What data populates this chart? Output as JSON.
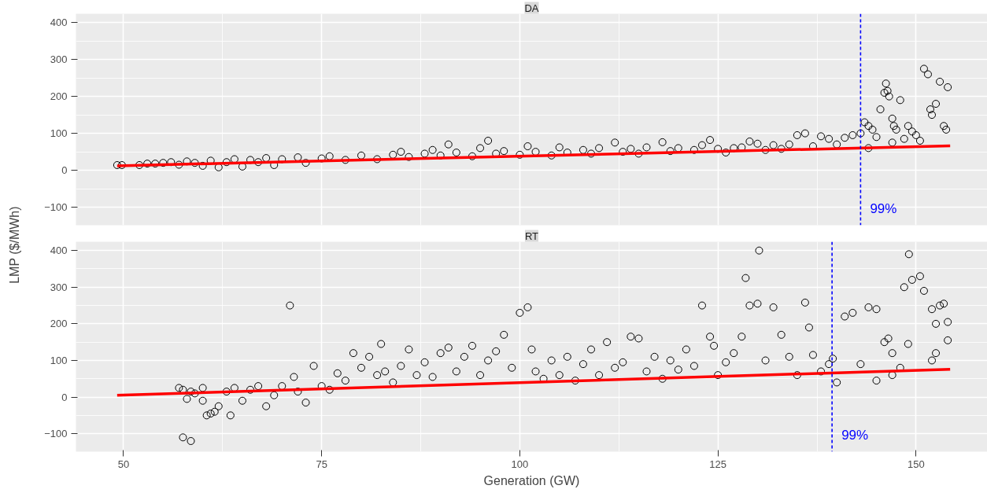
{
  "chart_data": [
    {
      "type": "scatter",
      "title": "DA",
      "ylabel": "LMP ($/MWh)",
      "xlim": [
        44,
        159
      ],
      "xticks": [
        50,
        75,
        100,
        125,
        150
      ],
      "ylim": [
        -149,
        424
      ],
      "yticks": [
        -100,
        0,
        100,
        200,
        300,
        400
      ],
      "grid": true,
      "tick_labels": "y",
      "series": [
        {
          "marker": "circle",
          "color": "#000000",
          "x": [
            49.2,
            49.8,
            52,
            53,
            54,
            55,
            56,
            57,
            58,
            59,
            60,
            61,
            62,
            63,
            64,
            65,
            66,
            67,
            68,
            69,
            70,
            72,
            73,
            75,
            76,
            78,
            80,
            82,
            84,
            85,
            86,
            88,
            89,
            90,
            91,
            92,
            94,
            95,
            96,
            97,
            98,
            100,
            101,
            102,
            104,
            105,
            106,
            108,
            109,
            110,
            112,
            113,
            114,
            115,
            116,
            118,
            119,
            120,
            122,
            123,
            124,
            125,
            126,
            127,
            128,
            129,
            130,
            131,
            132,
            133,
            134,
            135,
            136,
            137,
            138,
            139,
            140,
            141,
            142,
            143,
            143.5,
            144,
            144.5,
            145,
            145.5,
            146,
            146.2,
            146.4,
            146.6,
            147,
            147.2,
            147.5,
            148,
            148.5,
            149,
            149.5,
            150,
            150.5,
            151,
            151.5,
            152.5,
            153,
            153.5,
            153.8,
            154,
            152,
            151.8,
            144,
            147
          ],
          "values": [
            14,
            14,
            14,
            18,
            18,
            20,
            22,
            15,
            24,
            20,
            12,
            26,
            8,
            22,
            30,
            10,
            28,
            22,
            33,
            14,
            30,
            35,
            20,
            32,
            38,
            28,
            40,
            30,
            42,
            50,
            36,
            45,
            55,
            40,
            70,
            48,
            38,
            60,
            80,
            45,
            52,
            42,
            65,
            50,
            40,
            62,
            48,
            55,
            45,
            60,
            75,
            50,
            58,
            45,
            62,
            76,
            52,
            60,
            55,
            68,
            82,
            58,
            48,
            60,
            62,
            78,
            72,
            55,
            68,
            58,
            70,
            95,
            100,
            65,
            92,
            85,
            70,
            88,
            95,
            100,
            130,
            120,
            110,
            90,
            165,
            210,
            235,
            215,
            200,
            140,
            120,
            110,
            190,
            85,
            120,
            105,
            95,
            80,
            275,
            260,
            180,
            240,
            120,
            110,
            225,
            150,
            165,
            60,
            75
          ]
        },
        {
          "type": "line",
          "color": "#ff0000",
          "x": [
            49.2,
            154.3
          ],
          "values": [
            12,
            66
          ]
        }
      ],
      "ref_lines": [
        {
          "axis": "x",
          "value": 143,
          "color": "#0000ff",
          "line_style": "dashed"
        }
      ],
      "annotations": [
        {
          "text": "99%",
          "x": 143,
          "y": -105
        }
      ]
    },
    {
      "type": "scatter",
      "title": "RT",
      "xlabel": "Generation (GW)",
      "xlim": [
        44,
        159
      ],
      "xticks": [
        50,
        75,
        100,
        125,
        150
      ],
      "ylim": [
        -149,
        424
      ],
      "yticks": [
        -100,
        0,
        100,
        200,
        300,
        400
      ],
      "grid": true,
      "series": [
        {
          "marker": "circle",
          "color": "#000000",
          "x": [
            57.5,
            58,
            58.5,
            57.5,
            58.5,
            59,
            60,
            60.5,
            61,
            61.5,
            62,
            63,
            63.5,
            64,
            65,
            66,
            67,
            68,
            69,
            70,
            71,
            71.5,
            72,
            73,
            74,
            75,
            76,
            77,
            78,
            79,
            80,
            81,
            82,
            82.5,
            83,
            84,
            85,
            86,
            87,
            88,
            89,
            90,
            91,
            92,
            93,
            94,
            95,
            96,
            97,
            98,
            99,
            100,
            101,
            101.5,
            102,
            103,
            104,
            105,
            106,
            107,
            108,
            109,
            110,
            111,
            112,
            113,
            114,
            115,
            116,
            117,
            118,
            119,
            120,
            121,
            122,
            123,
            124,
            124.5,
            125,
            126,
            127,
            128,
            128.5,
            129,
            130,
            130.2,
            131,
            132,
            133,
            134,
            135,
            136,
            136.5,
            137,
            138,
            139,
            139.5,
            140,
            141,
            142,
            143,
            144,
            145,
            146,
            146.5,
            147,
            148,
            148.5,
            149,
            149.5,
            149.1,
            150.5,
            151,
            152,
            152.5,
            153,
            153.5,
            154,
            154,
            152,
            152.5,
            145,
            147,
            57,
            60
          ],
          "values": [
            20,
            -5,
            15,
            -110,
            -120,
            10,
            -10,
            -50,
            -45,
            -40,
            -25,
            15,
            -50,
            25,
            -10,
            20,
            30,
            -25,
            5,
            30,
            250,
            55,
            15,
            -15,
            85,
            30,
            20,
            65,
            45,
            120,
            80,
            110,
            60,
            145,
            70,
            40,
            85,
            130,
            60,
            95,
            55,
            120,
            135,
            70,
            110,
            140,
            60,
            100,
            125,
            170,
            80,
            230,
            245,
            130,
            70,
            50,
            100,
            60,
            110,
            45,
            90,
            130,
            60,
            150,
            80,
            95,
            165,
            160,
            70,
            110,
            50,
            100,
            75,
            130,
            85,
            250,
            165,
            140,
            60,
            95,
            120,
            165,
            325,
            250,
            255,
            400,
            100,
            245,
            170,
            110,
            60,
            258,
            190,
            115,
            70,
            90,
            105,
            40,
            220,
            230,
            90,
            245,
            240,
            150,
            160,
            120,
            80,
            300,
            145,
            320,
            390,
            330,
            290,
            240,
            200,
            250,
            255,
            205,
            155,
            100,
            120,
            45,
            60,
            25,
            25
          ]
        },
        {
          "type": "line",
          "color": "#ff0000",
          "x": [
            49.2,
            154.3
          ],
          "values": [
            5,
            76
          ]
        }
      ],
      "ref_lines": [
        {
          "axis": "x",
          "value": 139.4,
          "color": "#0000ff",
          "line_style": "dashed"
        }
      ],
      "annotations": [
        {
          "text": "99%",
          "x": 139.4,
          "y": -105
        }
      ]
    }
  ]
}
